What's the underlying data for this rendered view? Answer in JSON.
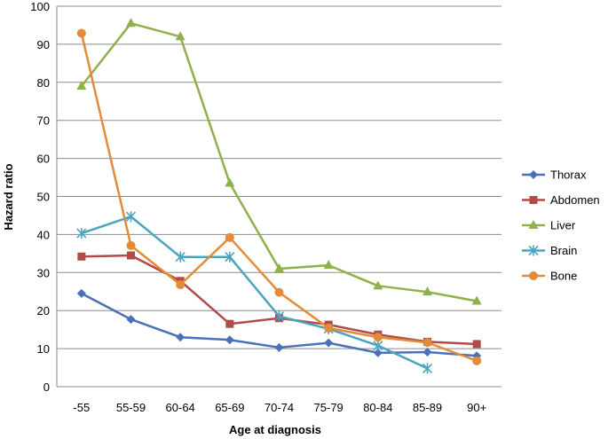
{
  "chart_data": {
    "type": "line",
    "xlabel": "Age at diagnosis",
    "ylabel": "Hazard ratio",
    "categories": [
      "-55",
      "55-59",
      "60-64",
      "65-69",
      "70-74",
      "75-79",
      "80-84",
      "85-89",
      "90+"
    ],
    "ylim": [
      0,
      100
    ],
    "yticks": [
      0,
      10,
      20,
      30,
      40,
      50,
      60,
      70,
      80,
      90,
      100
    ],
    "grid": "horizontal",
    "legend_position": "right",
    "series": [
      {
        "name": "Thorax",
        "color": "#4a70b8",
        "marker": "diamond",
        "values": [
          24.5,
          17.7,
          13.0,
          12.3,
          10.3,
          11.5,
          8.9,
          9.1,
          8.1
        ]
      },
      {
        "name": "Abdomen",
        "color": "#b34a48",
        "marker": "square",
        "values": [
          34.2,
          34.5,
          27.8,
          16.5,
          18.0,
          16.3,
          13.7,
          11.8,
          11.2
        ]
      },
      {
        "name": "Liver",
        "color": "#8fb14a",
        "marker": "triangle",
        "values": [
          79.0,
          95.5,
          92.0,
          53.5,
          31.0,
          31.9,
          26.5,
          24.9,
          22.5
        ]
      },
      {
        "name": "Brain",
        "color": "#4aa3bf",
        "marker": "asterisk",
        "values": [
          40.3,
          44.7,
          34.1,
          34.1,
          18.5,
          15.2,
          10.8,
          4.8,
          null
        ]
      },
      {
        "name": "Bone",
        "color": "#e48b3a",
        "marker": "circle",
        "values": [
          92.9,
          37.1,
          26.8,
          39.2,
          24.8,
          15.4,
          13.0,
          11.6,
          6.8
        ]
      }
    ]
  }
}
